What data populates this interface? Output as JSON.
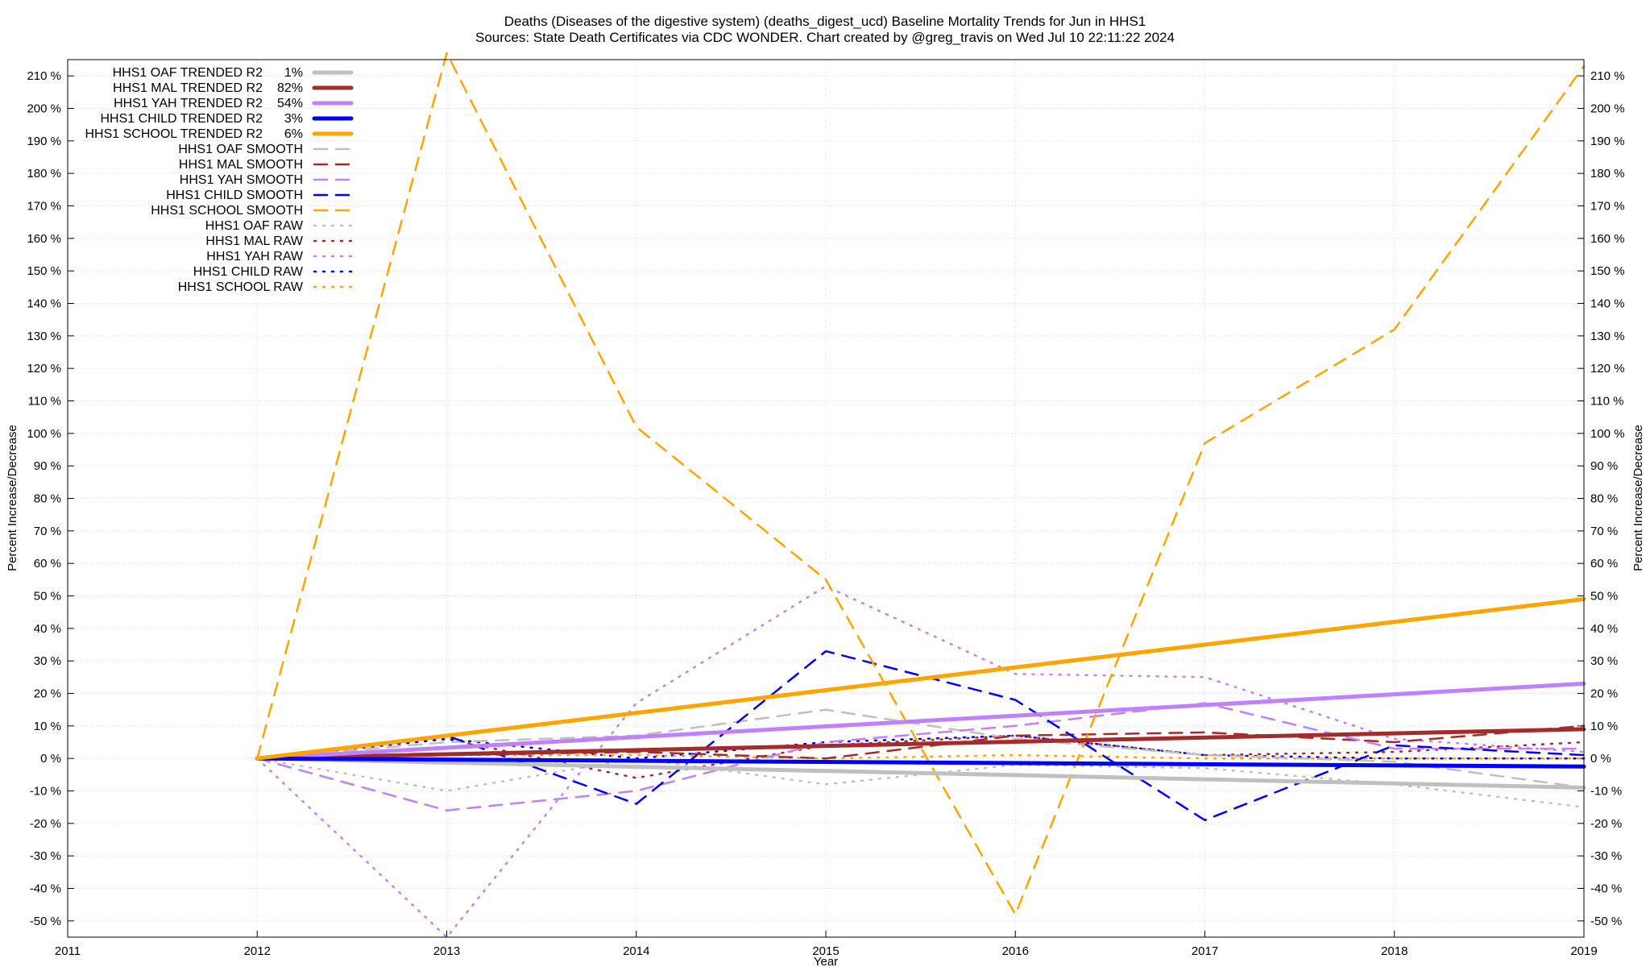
{
  "chart_data": {
    "type": "line",
    "title_line1": "Deaths (Diseases of the digestive system) (deaths_digest_ucd)  Baseline Mortality Trends for Jun in HHS1",
    "title_line2": "Sources: State Death Certificates via CDC WONDER.                Chart created by @greg_travis on Wed Jul 10 22:11:22 2024",
    "xlabel": "Year",
    "ylabel_left": "Percent Increase/Decrease",
    "ylabel_right": "Percent Increase/Decrease",
    "xlim": [
      2011,
      2019
    ],
    "ylim": [
      -55,
      215
    ],
    "x_ticks": [
      "2011",
      "2012",
      "2013",
      "2014",
      "2015",
      "2016",
      "2017",
      "2018",
      "2019"
    ],
    "y_ticks": [
      "-50 %",
      "-40 %",
      "-30 %",
      "-20 %",
      "-10 %",
      "0 %",
      "10 %",
      "20 %",
      "30 %",
      "40 %",
      "50 %",
      "60 %",
      "70 %",
      "80 %",
      "90 %",
      "100 %",
      "110 %",
      "120 %",
      "130 %",
      "140 %",
      "150 %",
      "160 %",
      "170 %",
      "180 %",
      "190 %",
      "200 %",
      "210 %"
    ],
    "grid": true,
    "legend_position": "top-left",
    "colors": {
      "oaf": "#c0c0c0",
      "mal": "#a52a2a",
      "yah": "#c080ff",
      "child": "#0000ff",
      "school": "#ffa500"
    },
    "series": [
      {
        "name": "HHS1 OAF TRENDED R2",
        "r2": "1%",
        "group": "oaf",
        "style": "trend",
        "x": [
          2012,
          2019
        ],
        "y": [
          0,
          -9
        ]
      },
      {
        "name": "HHS1 MAL TRENDED R2",
        "r2": "82%",
        "group": "mal",
        "style": "trend",
        "x": [
          2012,
          2019
        ],
        "y": [
          0,
          9
        ]
      },
      {
        "name": "HHS1 YAH TRENDED R2",
        "r2": "54%",
        "group": "yah",
        "style": "trend",
        "x": [
          2012,
          2019
        ],
        "y": [
          0,
          23
        ]
      },
      {
        "name": "HHS1 CHILD TRENDED R2",
        "r2": "3%",
        "group": "child",
        "style": "trend",
        "x": [
          2012,
          2019
        ],
        "y": [
          0,
          -2.5
        ]
      },
      {
        "name": "HHS1 SCHOOL TRENDED R2",
        "r2": "6%",
        "group": "school",
        "style": "trend",
        "x": [
          2012,
          2019
        ],
        "y": [
          0,
          49
        ]
      },
      {
        "name": "HHS1 OAF SMOOTH",
        "r2": "",
        "group": "oaf",
        "style": "smooth",
        "x": [
          2012,
          2013,
          2014,
          2015,
          2016,
          2017,
          2018,
          2019
        ],
        "y": [
          0,
          5,
          7,
          15,
          6,
          1,
          -1,
          -9
        ]
      },
      {
        "name": "HHS1 MAL SMOOTH",
        "r2": "",
        "group": "mal",
        "style": "smooth",
        "x": [
          2012,
          2013,
          2014,
          2015,
          2016,
          2017,
          2018,
          2019
        ],
        "y": [
          0,
          1,
          2,
          0,
          7,
          8,
          5,
          10
        ]
      },
      {
        "name": "HHS1 YAH SMOOTH",
        "r2": "",
        "group": "yah",
        "style": "smooth",
        "x": [
          2012,
          2013,
          2014,
          2015,
          2016,
          2017,
          2018,
          2019
        ],
        "y": [
          0,
          -16,
          -10,
          5,
          10,
          17,
          3,
          3
        ]
      },
      {
        "name": "HHS1 CHILD SMOOTH",
        "r2": "",
        "group": "child",
        "style": "smooth",
        "x": [
          2012,
          2013,
          2014,
          2015,
          2016,
          2017,
          2018,
          2019
        ],
        "y": [
          0,
          7,
          -14,
          33,
          18,
          -19,
          4,
          1
        ]
      },
      {
        "name": "HHS1 SCHOOL SMOOTH",
        "r2": "",
        "group": "school",
        "style": "smooth",
        "x": [
          2012,
          2013,
          2014,
          2015,
          2016,
          2017,
          2018,
          2019
        ],
        "y": [
          0,
          217,
          102,
          55,
          -48,
          97,
          132,
          213
        ]
      },
      {
        "name": "HHS1 OAF RAW",
        "r2": "",
        "group": "oaf",
        "style": "raw",
        "x": [
          2012,
          2013,
          2014,
          2015,
          2016,
          2017,
          2018,
          2019
        ],
        "y": [
          0,
          -10,
          0,
          -8,
          -2,
          -3,
          -8,
          -15
        ]
      },
      {
        "name": "HHS1 MAL RAW",
        "r2": "",
        "group": "mal",
        "style": "raw",
        "x": [
          2012,
          2013,
          2014,
          2015,
          2016,
          2017,
          2018,
          2019
        ],
        "y": [
          0,
          6,
          -6,
          4,
          7,
          1,
          2,
          5
        ]
      },
      {
        "name": "HHS1 YAH RAW",
        "r2": "",
        "group": "yah",
        "style": "raw",
        "x": [
          2012,
          2013,
          2014,
          2015,
          2016,
          2017,
          2018,
          2019
        ],
        "y": [
          0,
          -55,
          17,
          53,
          26,
          25,
          6,
          2
        ]
      },
      {
        "name": "HHS1 CHILD RAW",
        "r2": "",
        "group": "child",
        "style": "raw",
        "x": [
          2012,
          2013,
          2014,
          2015,
          2016,
          2017,
          2018,
          2019
        ],
        "y": [
          0,
          6,
          0,
          5,
          7,
          1,
          0,
          0
        ]
      },
      {
        "name": "HHS1 SCHOOL RAW",
        "r2": "",
        "group": "school",
        "style": "raw",
        "x": [
          2012,
          2013,
          2014,
          2015,
          2016,
          2017,
          2018,
          2019
        ],
        "y": [
          0,
          1,
          1,
          0,
          1,
          0,
          0,
          0
        ]
      }
    ]
  }
}
